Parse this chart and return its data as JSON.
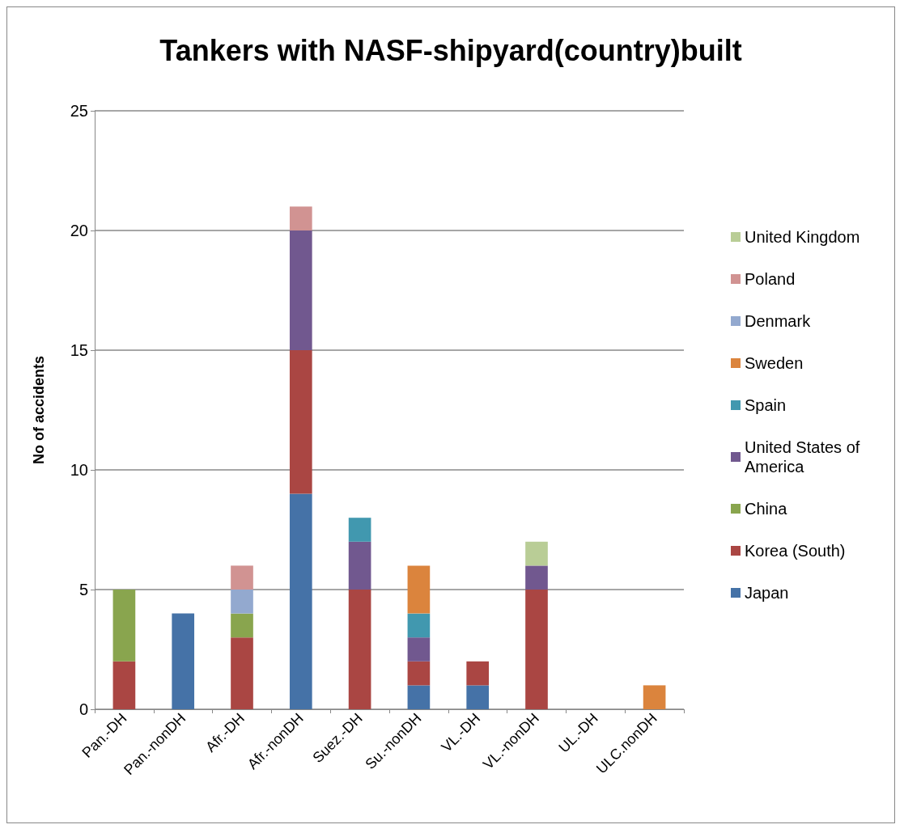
{
  "chart_data": {
    "type": "bar",
    "title": "Tankers with NASF-shipyard(country)built",
    "ylabel": "No of accidents",
    "categories": [
      "Pan.-DH",
      "Pan.-nonDH",
      "Afr.-DH",
      "Afr.-nonDH",
      "Suez.-DH",
      "Su.-nonDH",
      "VL.-DH",
      "VL.-nonDH",
      "UL.-DH",
      "ULC.nonDH"
    ],
    "stacked": true,
    "ylim": [
      0,
      25
    ],
    "yticks": [
      0,
      5,
      10,
      15,
      20,
      25
    ],
    "grid": "y",
    "legend": "right",
    "series": [
      {
        "name": "Japan",
        "color": "#4572a7",
        "values": [
          0,
          4,
          0,
          9,
          0,
          1,
          1,
          0,
          0,
          0
        ]
      },
      {
        "name": "Korea (South)",
        "color": "#aa4643",
        "values": [
          2,
          0,
          3,
          6,
          5,
          1,
          1,
          5,
          0,
          0
        ]
      },
      {
        "name": "China",
        "color": "#89a54e",
        "values": [
          3,
          0,
          1,
          0,
          0,
          0,
          0,
          0,
          0,
          0
        ]
      },
      {
        "name": "United States of America",
        "color": "#71588f",
        "values": [
          0,
          0,
          0,
          5,
          2,
          1,
          0,
          1,
          0,
          0
        ]
      },
      {
        "name": "Spain",
        "color": "#4198af",
        "values": [
          0,
          0,
          0,
          0,
          1,
          1,
          0,
          0,
          0,
          0
        ]
      },
      {
        "name": "Sweden",
        "color": "#db843d",
        "values": [
          0,
          0,
          0,
          0,
          0,
          2,
          0,
          0,
          0,
          1
        ]
      },
      {
        "name": "Denmark",
        "color": "#93a9cf",
        "values": [
          0,
          0,
          1,
          0,
          0,
          0,
          0,
          0,
          0,
          0
        ]
      },
      {
        "name": "Poland",
        "color": "#d19392",
        "values": [
          0,
          0,
          1,
          1,
          0,
          0,
          0,
          0,
          0,
          0
        ]
      },
      {
        "name": "United Kingdom",
        "color": "#b9cd96",
        "values": [
          0,
          0,
          0,
          0,
          0,
          0,
          0,
          1,
          0,
          0
        ]
      }
    ]
  }
}
